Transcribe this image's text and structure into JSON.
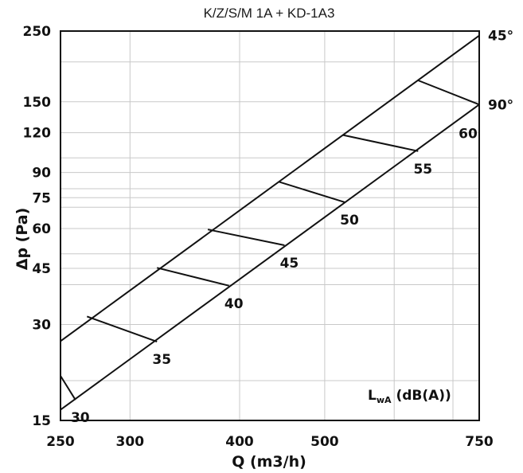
{
  "chart_data": {
    "type": "line",
    "title": "K/Z/S/M 1A + KD-1A3",
    "xlabel": "Q  (m3/h)",
    "ylabel": "Δp  (Pa)",
    "x_scale": "log",
    "y_scale": "log",
    "xlim": [
      250,
      750
    ],
    "ylim": [
      15,
      250
    ],
    "x_ticks": [
      250,
      300,
      400,
      500,
      750
    ],
    "y_ticks": [
      15,
      30,
      45,
      60,
      75,
      90,
      120,
      150,
      250
    ],
    "x_grid": [
      250,
      300,
      400,
      500,
      600,
      700,
      750
    ],
    "y_grid": [
      15,
      20,
      30,
      40,
      45,
      50,
      60,
      70,
      75,
      80,
      90,
      100,
      120,
      150,
      200,
      250
    ],
    "grid": true,
    "series": [
      {
        "name": "45°",
        "x": [
          250,
          750
        ],
        "y": [
          26.6,
          242
        ]
      },
      {
        "name": "90°",
        "x": [
          250,
          750
        ],
        "y": [
          16.2,
          147
        ]
      }
    ],
    "sound_lines": {
      "unit_label": "L",
      "unit_sub": "wA",
      "unit_rest": "  (dB(A))",
      "lines": [
        {
          "value": "30",
          "x1": 250,
          "y1": 20.7,
          "x2": 260,
          "y2": 17.4
        },
        {
          "value": "35",
          "x1": 268,
          "y1": 31.8,
          "x2": 322,
          "y2": 26.5
        },
        {
          "value": "40",
          "x1": 322,
          "y1": 45.2,
          "x2": 389,
          "y2": 39.7
        },
        {
          "value": "45",
          "x1": 368,
          "y1": 59.6,
          "x2": 450,
          "y2": 53.2
        },
        {
          "value": "50",
          "x1": 443,
          "y1": 84.2,
          "x2": 527,
          "y2": 72.6
        },
        {
          "value": "55",
          "x1": 524,
          "y1": 118,
          "x2": 639,
          "y2": 105
        },
        {
          "value": "60",
          "x1": 639,
          "y1": 175,
          "x2": 750,
          "y2": 147
        }
      ]
    }
  }
}
